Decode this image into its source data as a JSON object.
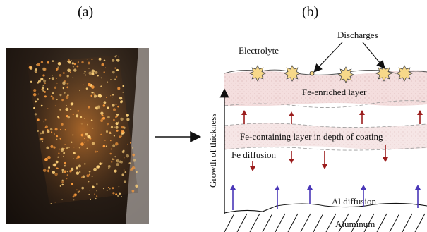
{
  "panels": {
    "a": "(a)",
    "b": "(b)"
  },
  "labels": {
    "electrolyte": "Electrolyte",
    "discharges": "Discharges",
    "fe_enriched": "Fe-enriched layer",
    "fe_containing": "Fe-containing layer in depth of coating",
    "fe_diffusion": "Fe diffusion",
    "al_diffusion": "Al diffusion",
    "aluminum": "Aluminum",
    "growth": "Growth of thickness"
  },
  "colors": {
    "red_arrow": "#9b1c1c",
    "blue_arrow": "#4a37b8",
    "layer_fill": "#f3dcdc",
    "spark": "#f7d889"
  }
}
